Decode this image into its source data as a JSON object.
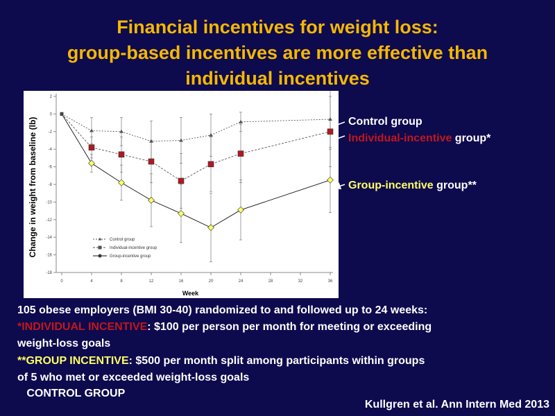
{
  "slide": {
    "title_line1": "Financial incentives for weight loss:",
    "title_line2": "group-based incentives are more effective than",
    "title_line3": "individual incentives",
    "legend_right": {
      "control": "Control group",
      "individual_colored": "Individual-incentive",
      "individual_rest": " group*",
      "group_colored": "Group-incentive",
      "group_rest": " group**"
    },
    "body": {
      "line1": "105 obese employers (BMI 30-40) randomized to and followed up to 24 weeks:",
      "line2_prefix": " *INDIVIDUAL INCENTIVE",
      "line2_rest": ": $100 per person per month for meeting or exceeding",
      "line3": "weight-loss goals",
      "line4_prefix": "**GROUP INCENTIVE",
      "line4_rest": ": $500 per month split among participants within groups",
      "line5": "of 5 who met or exceeded weight-loss goals",
      "line6": "   CONTROL GROUP"
    },
    "citation": "Kullgren et al. Ann Intern Med 2013"
  },
  "colors": {
    "background": "#0d0a4e",
    "title": "#f5b800",
    "individual_marker": "#b01822",
    "group_marker": "#ffff66",
    "red_text": "#c0171b",
    "yellow_text": "#ffff66"
  },
  "chart_data": {
    "type": "line",
    "xlabel": "Week",
    "ylabel": "Change in weight from baseline (lb)",
    "xlim": [
      0,
      36
    ],
    "ylim": [
      -18,
      2
    ],
    "x_ticks": [
      0,
      4,
      8,
      12,
      16,
      20,
      24,
      28,
      32,
      36
    ],
    "y_ticks": [
      2,
      0,
      -2,
      -4,
      -6,
      -8,
      -10,
      -12,
      -14,
      -16,
      -18
    ],
    "legend_position": "bottom-left",
    "series": [
      {
        "name": "Control group",
        "marker": "triangle",
        "x": [
          0,
          4,
          8,
          12,
          16,
          20,
          24,
          36
        ],
        "values": [
          0,
          -1.9,
          -2.0,
          -3.1,
          -3.0,
          -2.4,
          -0.9,
          -0.6
        ],
        "error": [
          0,
          1.5,
          1.6,
          2.3,
          2.6,
          2.4,
          1.1,
          3.4
        ]
      },
      {
        "name": "Individual-incentive group",
        "marker": "square",
        "x": [
          0,
          4,
          8,
          12,
          16,
          20,
          24,
          36
        ],
        "values": [
          0,
          -3.8,
          -4.6,
          -5.4,
          -7.6,
          -5.7,
          -4.5,
          -2.0
        ],
        "error": [
          0,
          1.2,
          2.0,
          2.4,
          3.1,
          3.1,
          3.3,
          4.0
        ]
      },
      {
        "name": "Group-incentive group",
        "marker": "diamond",
        "x": [
          0,
          4,
          8,
          12,
          16,
          20,
          24,
          36
        ],
        "values": [
          0,
          -5.6,
          -7.8,
          -9.8,
          -11.3,
          -12.9,
          -10.9,
          -7.5
        ],
        "error": [
          0,
          1.0,
          2.0,
          3.0,
          3.3,
          3.9,
          3.4,
          3.7
        ]
      }
    ]
  }
}
